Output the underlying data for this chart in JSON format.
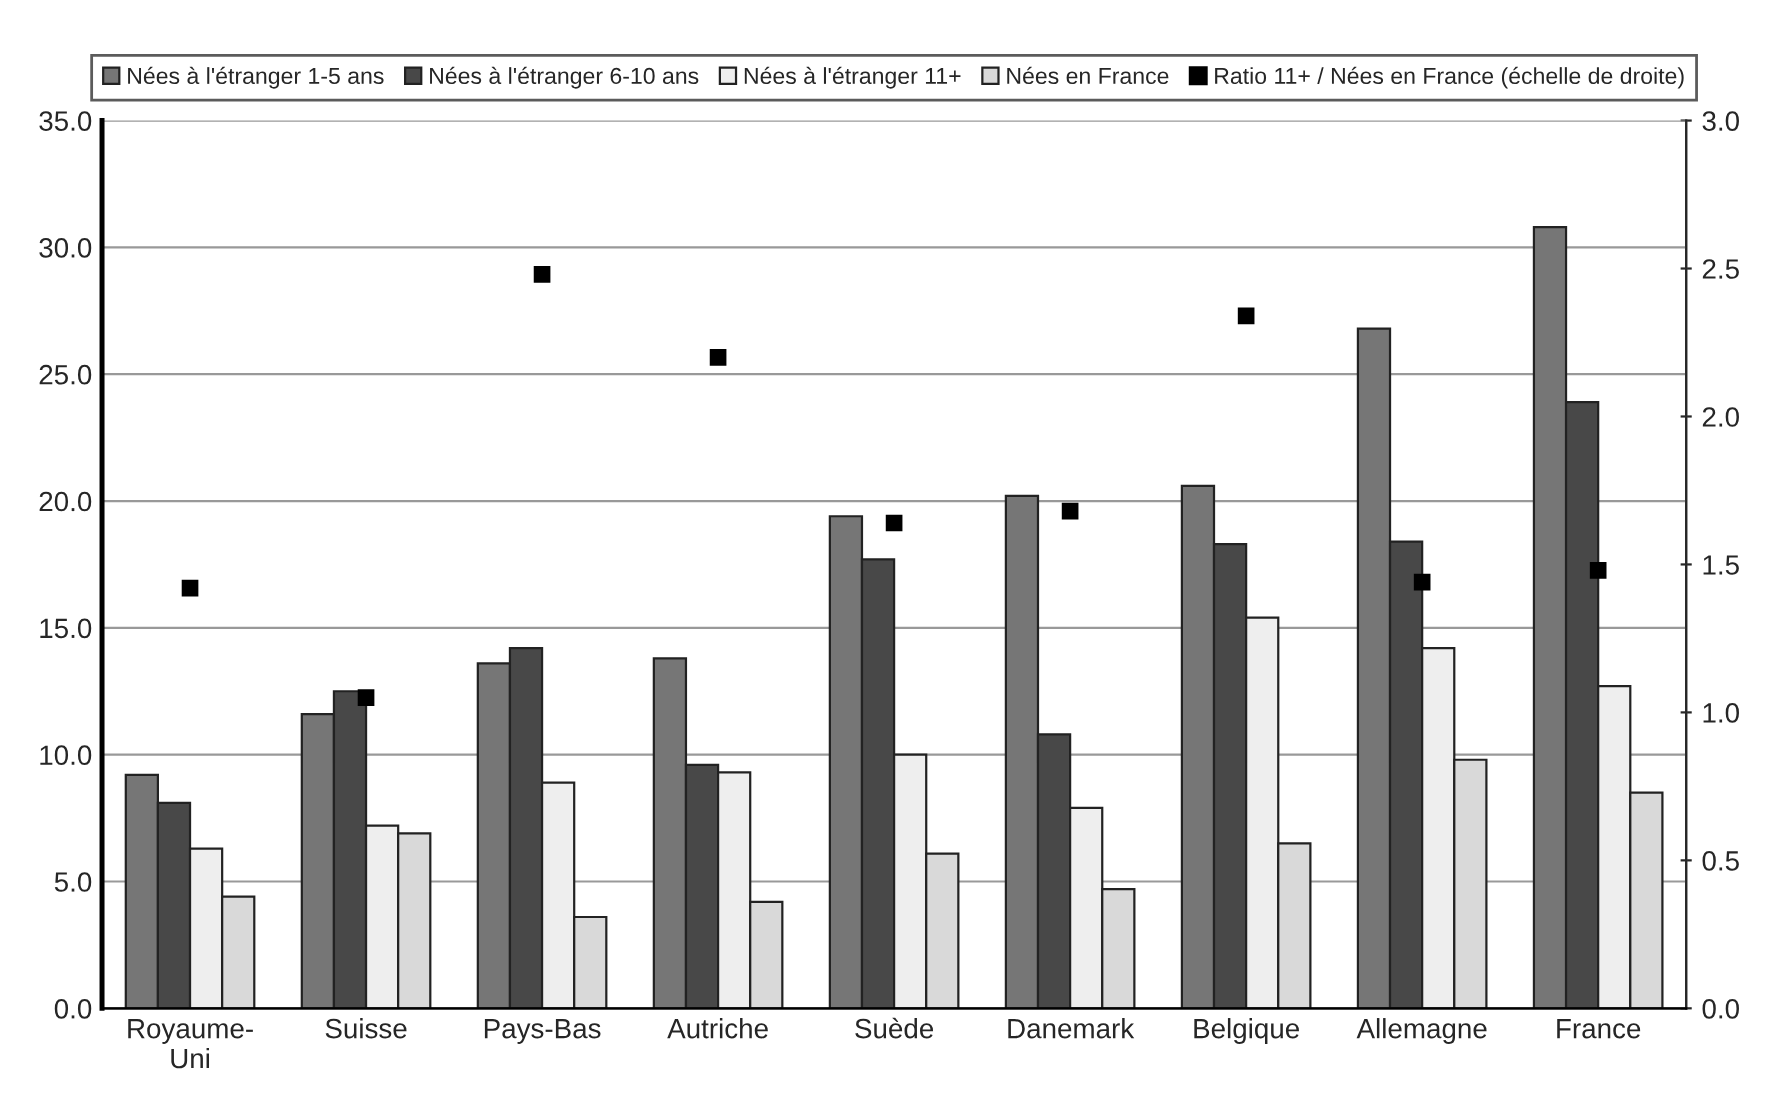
{
  "chart_data": {
    "type": "bar",
    "categories": [
      "Royaume-\nUni",
      "Suisse",
      "Pays-Bas",
      "Autriche",
      "Suède",
      "Danemark",
      "Belgique",
      "Allemagne",
      "France"
    ],
    "series": [
      {
        "name": "Nées à l'étranger 1-5 ans",
        "color": "#767676",
        "values": [
          9.2,
          11.6,
          13.6,
          13.8,
          19.4,
          20.2,
          20.6,
          26.8,
          30.8
        ]
      },
      {
        "name": "Nées à l'étranger 6-10 ans",
        "color": "#484848",
        "values": [
          8.1,
          12.5,
          14.2,
          9.6,
          17.7,
          10.8,
          18.3,
          18.4,
          23.9
        ]
      },
      {
        "name": "Nées à l'étranger 11+",
        "color": "#eeeeee",
        "values": [
          6.3,
          7.2,
          8.9,
          9.3,
          10.0,
          7.9,
          15.4,
          14.2,
          12.7
        ]
      },
      {
        "name": "Nées en France",
        "color": "#d9d9d9",
        "values": [
          4.4,
          6.9,
          3.6,
          4.2,
          6.1,
          4.7,
          6.5,
          9.8,
          8.5
        ]
      },
      {
        "name": "Ratio 11+ / Nées en France (échelle de droite)",
        "color": "#000000",
        "type": "scatter",
        "axis": "y2",
        "marker": "square",
        "values": [
          1.42,
          1.05,
          2.48,
          2.2,
          1.64,
          1.68,
          2.34,
          1.44,
          1.48
        ]
      }
    ],
    "ylim": [
      0,
      35
    ],
    "yticks": [
      {
        "value": 0,
        "label": "0.0"
      },
      {
        "value": 5,
        "label": "5.0"
      },
      {
        "value": 10,
        "label": "10.0"
      },
      {
        "value": 15,
        "label": "15.0"
      },
      {
        "value": 20,
        "label": "20.0"
      },
      {
        "value": 25,
        "label": "25.0"
      },
      {
        "value": 30,
        "label": "30.0"
      },
      {
        "value": 35,
        "label": "35.0"
      }
    ],
    "y2lim": [
      0,
      3
    ],
    "y2ticks": [
      {
        "value": 0,
        "label": "0.0"
      },
      {
        "value": 0.5,
        "label": "0.5"
      },
      {
        "value": 1,
        "label": "1.0"
      },
      {
        "value": 1.5,
        "label": "1.5"
      },
      {
        "value": 2,
        "label": "2.0"
      },
      {
        "value": 2.5,
        "label": "2.5"
      },
      {
        "value": 3,
        "label": "3.0"
      }
    ],
    "grid": "y",
    "legend": "top"
  }
}
